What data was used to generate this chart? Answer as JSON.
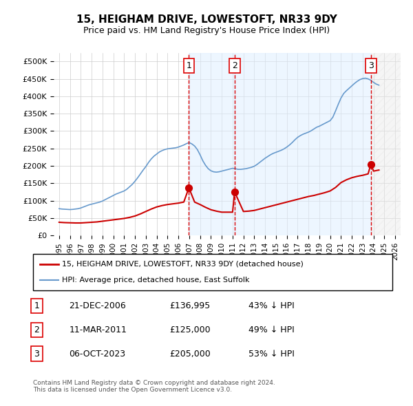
{
  "title": "15, HEIGHAM DRIVE, LOWESTOFT, NR33 9DY",
  "subtitle": "Price paid vs. HM Land Registry's House Price Index (HPI)",
  "ylabel_ticks": [
    "£0",
    "£50K",
    "£100K",
    "£150K",
    "£200K",
    "£250K",
    "£300K",
    "£350K",
    "£400K",
    "£450K",
    "£500K"
  ],
  "ytick_values": [
    0,
    50000,
    100000,
    150000,
    200000,
    250000,
    300000,
    350000,
    400000,
    450000,
    500000
  ],
  "ylim": [
    0,
    525000
  ],
  "xlim_start": 1994.5,
  "xlim_end": 2026.5,
  "sale_dates": [
    2006.97,
    2011.19,
    2023.76
  ],
  "sale_prices": [
    136995,
    125000,
    205000
  ],
  "sale_labels": [
    "1",
    "2",
    "3"
  ],
  "vline_color": "#dd0000",
  "vline_style": "dashed",
  "shade_color": "#ddeeff",
  "legend_red_label": "15, HEIGHAM DRIVE, LOWESTOFT, NR33 9DY (detached house)",
  "legend_blue_label": "HPI: Average price, detached house, East Suffolk",
  "table_entries": [
    {
      "num": "1",
      "date": "21-DEC-2006",
      "price": "£136,995",
      "pct": "43% ↓ HPI"
    },
    {
      "num": "2",
      "date": "11-MAR-2011",
      "price": "£125,000",
      "pct": "49% ↓ HPI"
    },
    {
      "num": "3",
      "date": "06-OCT-2023",
      "price": "£205,000",
      "pct": "53% ↓ HPI"
    }
  ],
  "footnote": "Contains HM Land Registry data © Crown copyright and database right 2024.\nThis data is licensed under the Open Government Licence v3.0.",
  "red_line_color": "#cc0000",
  "blue_line_color": "#6699cc",
  "grid_color": "#cccccc",
  "background_color": "#ffffff",
  "hpi_years": [
    1995,
    1995.25,
    1995.5,
    1995.75,
    1996,
    1996.25,
    1996.5,
    1996.75,
    1997,
    1997.25,
    1997.5,
    1997.75,
    1998,
    1998.25,
    1998.5,
    1998.75,
    1999,
    1999.25,
    1999.5,
    1999.75,
    2000,
    2000.25,
    2000.5,
    2000.75,
    2001,
    2001.25,
    2001.5,
    2001.75,
    2002,
    2002.25,
    2002.5,
    2002.75,
    2003,
    2003.25,
    2003.5,
    2003.75,
    2004,
    2004.25,
    2004.5,
    2004.75,
    2005,
    2005.25,
    2005.5,
    2005.75,
    2006,
    2006.25,
    2006.5,
    2006.75,
    2007,
    2007.25,
    2007.5,
    2007.75,
    2008,
    2008.25,
    2008.5,
    2008.75,
    2009,
    2009.25,
    2009.5,
    2009.75,
    2010,
    2010.25,
    2010.5,
    2010.75,
    2011,
    2011.25,
    2011.5,
    2011.75,
    2012,
    2012.25,
    2012.5,
    2012.75,
    2013,
    2013.25,
    2013.5,
    2013.75,
    2014,
    2014.25,
    2014.5,
    2014.75,
    2015,
    2015.25,
    2015.5,
    2015.75,
    2016,
    2016.25,
    2016.5,
    2016.75,
    2017,
    2017.25,
    2017.5,
    2017.75,
    2018,
    2018.25,
    2018.5,
    2018.75,
    2019,
    2019.25,
    2019.5,
    2019.75,
    2020,
    2020.25,
    2020.5,
    2020.75,
    2021,
    2021.25,
    2021.5,
    2021.75,
    2022,
    2022.25,
    2022.5,
    2022.75,
    2023,
    2023.25,
    2023.5,
    2023.75,
    2024,
    2024.25,
    2024.5
  ],
  "hpi_values": [
    77000,
    76000,
    75500,
    75000,
    74500,
    75000,
    76000,
    77000,
    79000,
    82000,
    85000,
    88000,
    90000,
    92000,
    94000,
    96000,
    99000,
    103000,
    107000,
    111000,
    115000,
    119000,
    122000,
    125000,
    128000,
    133000,
    140000,
    147000,
    156000,
    166000,
    177000,
    188000,
    198000,
    210000,
    220000,
    228000,
    234000,
    240000,
    244000,
    247000,
    249000,
    250000,
    251000,
    252000,
    254000,
    257000,
    260000,
    264000,
    267000,
    263000,
    257000,
    247000,
    232000,
    215000,
    202000,
    192000,
    186000,
    183000,
    182000,
    183000,
    185000,
    187000,
    189000,
    191000,
    193000,
    192000,
    190000,
    190000,
    191000,
    192000,
    194000,
    196000,
    199000,
    204000,
    210000,
    216000,
    222000,
    227000,
    232000,
    236000,
    239000,
    242000,
    245000,
    249000,
    254000,
    260000,
    267000,
    275000,
    282000,
    287000,
    291000,
    294000,
    297000,
    301000,
    306000,
    311000,
    314000,
    318000,
    322000,
    326000,
    330000,
    340000,
    358000,
    377000,
    395000,
    408000,
    416000,
    423000,
    430000,
    437000,
    443000,
    448000,
    451000,
    452000,
    450000,
    446000,
    440000,
    435000,
    432000
  ],
  "red_years": [
    1995,
    1995.5,
    1996,
    1996.5,
    1997,
    1997.5,
    1998,
    1998.5,
    1999,
    1999.5,
    2000,
    2000.5,
    2001,
    2001.5,
    2002,
    2002.5,
    2003,
    2003.5,
    2004,
    2004.5,
    2005,
    2005.5,
    2006,
    2006.5,
    2006.97,
    2007.5,
    2008,
    2008.5,
    2009,
    2009.5,
    2010,
    2010.5,
    2011,
    2011.19,
    2012,
    2012.5,
    2013,
    2013.5,
    2014,
    2014.5,
    2015,
    2015.5,
    2016,
    2016.5,
    2017,
    2017.5,
    2018,
    2018.5,
    2019,
    2019.5,
    2020,
    2020.5,
    2021,
    2021.5,
    2022,
    2022.5,
    2023,
    2023.5,
    2023.76,
    2024,
    2024.5
  ],
  "red_values": [
    38000,
    37000,
    36500,
    36000,
    36000,
    37000,
    38000,
    39000,
    41000,
    43000,
    45000,
    47000,
    49000,
    52000,
    56000,
    62000,
    69000,
    76000,
    82000,
    86000,
    89000,
    91000,
    93000,
    96000,
    136995,
    96000,
    89000,
    81000,
    74000,
    70000,
    67000,
    67000,
    67000,
    125000,
    69000,
    70000,
    72000,
    76000,
    80000,
    84000,
    88000,
    92000,
    96000,
    100000,
    104000,
    108000,
    112000,
    115000,
    119000,
    123000,
    128000,
    138000,
    152000,
    160000,
    166000,
    170000,
    173000,
    177000,
    205000,
    185000,
    188000
  ]
}
